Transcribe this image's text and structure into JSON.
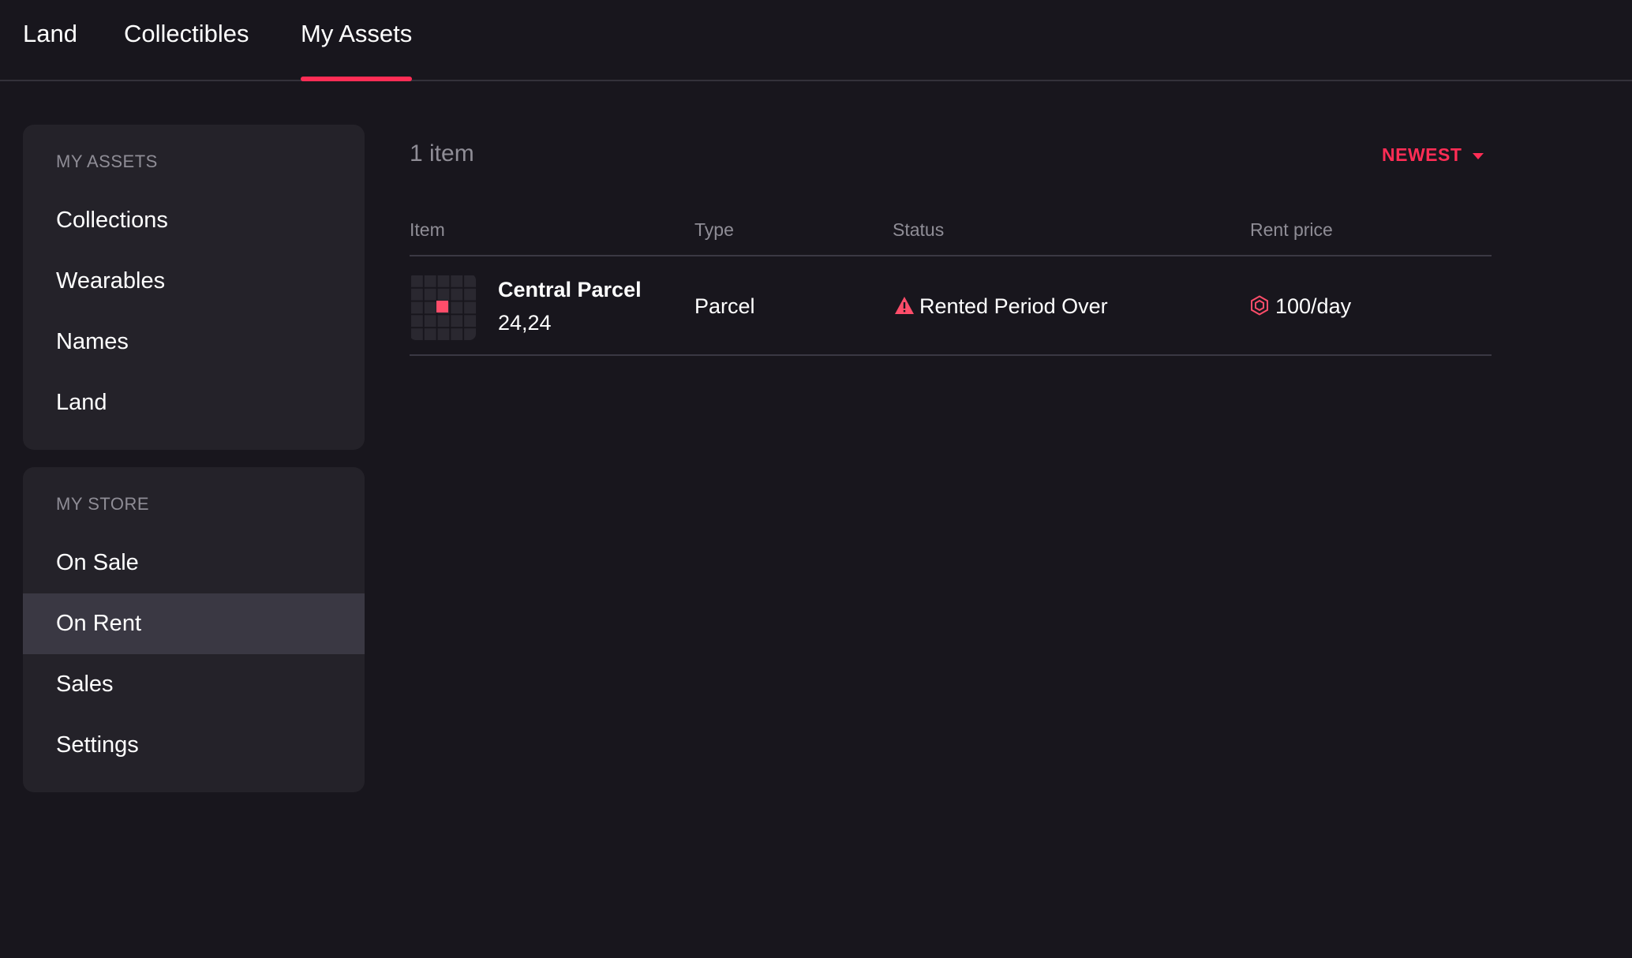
{
  "nav": {
    "tabs": [
      {
        "label": "Land"
      },
      {
        "label": "Collectibles"
      },
      {
        "label": "My Assets",
        "active": true
      }
    ]
  },
  "sidebar": {
    "assets": {
      "header": "MY ASSETS",
      "items": [
        {
          "label": "Collections"
        },
        {
          "label": "Wearables"
        },
        {
          "label": "Names"
        },
        {
          "label": "Land"
        }
      ]
    },
    "store": {
      "header": "MY STORE",
      "items": [
        {
          "label": "On Sale"
        },
        {
          "label": "On Rent",
          "active": true
        },
        {
          "label": "Sales"
        },
        {
          "label": "Settings"
        }
      ]
    }
  },
  "main": {
    "count": "1 item",
    "sort": {
      "label": "NEWEST",
      "icon": "caret-down-icon"
    },
    "columns": [
      "Item",
      "Type",
      "Status",
      "Rent price"
    ],
    "rows": [
      {
        "name": "Central Parcel",
        "coords": "24,24",
        "type": "Parcel",
        "status": "Rented Period Over",
        "status_icon": "warning-icon",
        "price": "100/day",
        "price_icon": "mana-icon"
      }
    ]
  },
  "colors": {
    "accent": "#ff2d55",
    "background": "#18161d",
    "panel": "#242229"
  }
}
